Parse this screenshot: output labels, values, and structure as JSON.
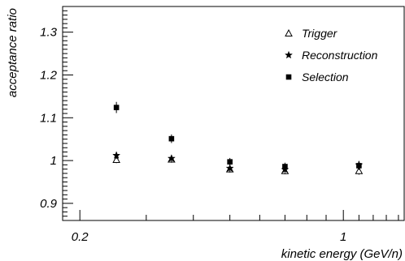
{
  "chart_data": {
    "type": "scatter",
    "title": "",
    "xlabel": "kinetic energy (GeV/n)",
    "ylabel": "acceptance ratio",
    "x_scale": "log",
    "xlim": [
      0.18,
      1.45
    ],
    "ylim": [
      0.86,
      1.36
    ],
    "x_tick_labels": [
      {
        "value": 0.2,
        "label": "0.2"
      },
      {
        "value": 1,
        "label": "1"
      }
    ],
    "y_tick_labels": [
      {
        "value": 0.9,
        "label": "0.9"
      },
      {
        "value": 1.0,
        "label": "1"
      },
      {
        "value": 1.1,
        "label": "1.1"
      },
      {
        "value": 1.2,
        "label": "1.2"
      },
      {
        "value": 1.3,
        "label": "1.3"
      }
    ],
    "grid": false,
    "legend_position": "top-right",
    "series": [
      {
        "name": "Trigger",
        "marker": "open-triangle",
        "color": "#000000",
        "points": [
          {
            "x": 0.25,
            "y": 1.002,
            "err": 0.008
          },
          {
            "x": 0.35,
            "y": 1.003,
            "err": 0.008
          },
          {
            "x": 0.5,
            "y": 0.98,
            "err": 0.008
          },
          {
            "x": 0.7,
            "y": 0.976,
            "err": 0.008
          },
          {
            "x": 1.1,
            "y": 0.976,
            "err": 0.009
          }
        ]
      },
      {
        "name": "Reconstruction",
        "marker": "star",
        "color": "#000000",
        "points": [
          {
            "x": 0.25,
            "y": 1.012,
            "err": 0.008
          },
          {
            "x": 0.35,
            "y": 1.005,
            "err": 0.008
          },
          {
            "x": 0.5,
            "y": 0.982,
            "err": 0.008
          },
          {
            "x": 0.7,
            "y": 0.979,
            "err": 0.008
          },
          {
            "x": 1.1,
            "y": 0.99,
            "err": 0.009
          }
        ]
      },
      {
        "name": "Selection",
        "marker": "filled-square",
        "color": "#000000",
        "points": [
          {
            "x": 0.25,
            "y": 1.124,
            "err": 0.013
          },
          {
            "x": 0.35,
            "y": 1.051,
            "err": 0.01
          },
          {
            "x": 0.5,
            "y": 0.997,
            "err": 0.009
          },
          {
            "x": 0.7,
            "y": 0.986,
            "err": 0.009
          },
          {
            "x": 1.1,
            "y": 0.988,
            "err": 0.01
          }
        ]
      }
    ]
  }
}
